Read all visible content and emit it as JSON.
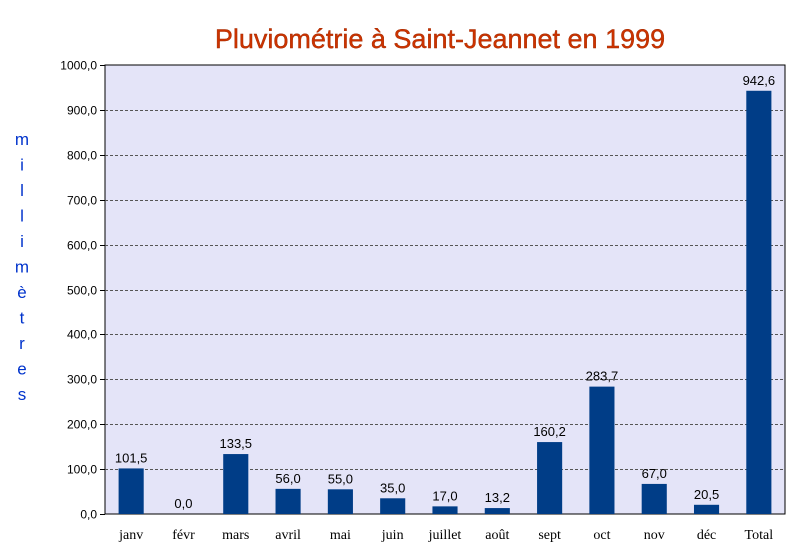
{
  "chart_data": {
    "type": "bar",
    "title": "Pluviométrie à Saint-Jeannet en 1999",
    "ylabel": "millimètres",
    "xlabel": "",
    "categories": [
      "janv",
      "févr",
      "mars",
      "avril",
      "mai",
      "juin",
      "juillet",
      "août",
      "sept",
      "oct",
      "nov",
      "déc",
      "Total"
    ],
    "values": [
      101.5,
      0.0,
      133.5,
      56.0,
      55.0,
      35.0,
      17.0,
      13.2,
      160.2,
      283.7,
      67.0,
      20.5,
      942.6
    ],
    "value_labels": [
      "101,5",
      "0,0",
      "133,5",
      "56,0",
      "55,0",
      "35,0",
      "17,0",
      "13,2",
      "160,2",
      "283,7",
      "67,0",
      "20,5",
      "942,6"
    ],
    "ylim": [
      0,
      1000
    ],
    "yticks": [
      0,
      100,
      200,
      300,
      400,
      500,
      600,
      700,
      800,
      900,
      1000
    ],
    "ytick_labels": [
      "0,0",
      "100,0",
      "200,0",
      "300,0",
      "400,0",
      "500,0",
      "600,0",
      "700,0",
      "800,0",
      "900,0",
      "1000,0"
    ],
    "grid": true,
    "legend": "none",
    "colors": {
      "bar": "#003d87",
      "plot_background": "#e4e4f8",
      "title": "#cc3300",
      "ylabel": "#0033cc"
    }
  }
}
